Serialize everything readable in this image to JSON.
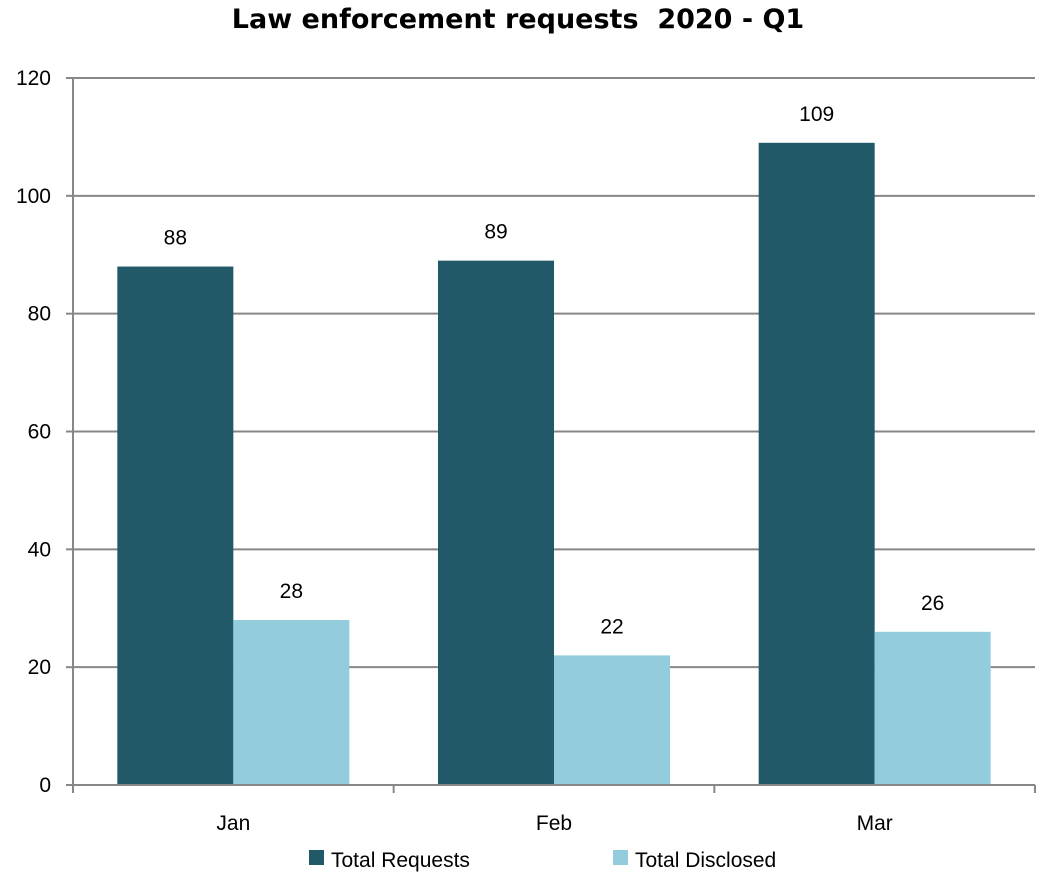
{
  "chart_data": {
    "type": "bar",
    "title": "Law enforcement requests  2020 - Q1",
    "xlabel": "",
    "ylabel": "",
    "categories": [
      "Jan",
      "Feb",
      "Mar"
    ],
    "series": [
      {
        "name": "Total Requests",
        "values": [
          88,
          89,
          109
        ],
        "color": "#215968"
      },
      {
        "name": "Total Disclosed",
        "values": [
          28,
          22,
          26
        ],
        "color": "#93cddd"
      }
    ],
    "ylim": [
      0,
      120
    ],
    "yticks": [
      "0",
      "20",
      "40",
      "60",
      "80",
      "100",
      "120"
    ],
    "grid": true,
    "data_labels": true,
    "legend_position": "bottom"
  },
  "colors": {
    "gridline": "#878787",
    "axis": "#878787"
  }
}
